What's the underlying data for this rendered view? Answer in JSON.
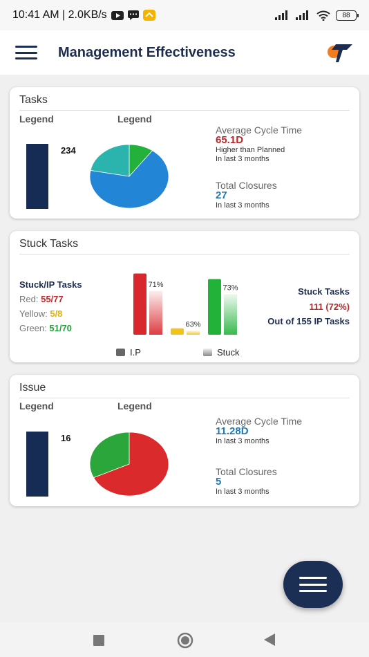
{
  "status_bar": {
    "time_speed": "10:41 AM | 2.0KB/s",
    "battery": "88"
  },
  "app_bar": {
    "title": "Management Effectiveness"
  },
  "tasks": {
    "title": "Tasks",
    "legend_left": "Legend",
    "legend_right": "Legend",
    "bar_count": "234",
    "avg_cycle_label": "Average Cycle Time",
    "avg_cycle_value": "65.1D",
    "avg_cycle_note": "Higher than Planned",
    "avg_cycle_period": "In last 3 months",
    "closures_label": "Total Closures",
    "closures_value": "27",
    "closures_period": "In last 3 months"
  },
  "stuck": {
    "title": "Stuck Tasks",
    "heading": "Stuck/IP Tasks",
    "red_label": "Red:",
    "red_value": "55/77",
    "yellow_label": "Yellow:",
    "yellow_value": "5/8",
    "green_label": "Green:",
    "green_value": "51/70",
    "red_pct": "71%",
    "yellow_pct": "63%",
    "green_pct": "73%",
    "right_heading": "Stuck Tasks",
    "right_value": "111 (72%)",
    "right_sub": "Out of 155 IP Tasks",
    "legend_ip": "I.P",
    "legend_stuck": "Stuck"
  },
  "issue": {
    "title": "Issue",
    "legend_left": "Legend",
    "legend_right": "Legend",
    "bar_count": "16",
    "avg_cycle_label": "Average Cycle Time",
    "avg_cycle_value": "11.28D",
    "avg_cycle_period": "In last 3 months",
    "closures_label": "Total Closures",
    "closures_value": "5",
    "closures_period": "In last 3 months"
  },
  "chart_data": [
    {
      "type": "pie",
      "values": [
        10,
        68,
        22
      ],
      "colors": [
        "#23b13c",
        "#2285d6",
        "#2bb3ad"
      ]
    },
    {
      "type": "bar",
      "categories": [
        "Red",
        "Yellow",
        "Green"
      ],
      "series": [
        {
          "name": "I.P",
          "values": [
            77,
            8,
            70
          ]
        },
        {
          "name": "Stuck",
          "values": [
            55,
            5,
            51
          ]
        }
      ],
      "labels": [
        "71%",
        "63%",
        "73%"
      ],
      "colors": [
        "#d8282e",
        "#f2c318",
        "#22b23a"
      ]
    },
    {
      "type": "pie",
      "values": [
        68,
        32
      ],
      "colors": [
        "#db2a2b",
        "#2aa63b"
      ]
    }
  ],
  "colors": {
    "dark_blue": "#172c54",
    "red_value": "#b8282a",
    "blue_value": "#2078b4"
  }
}
